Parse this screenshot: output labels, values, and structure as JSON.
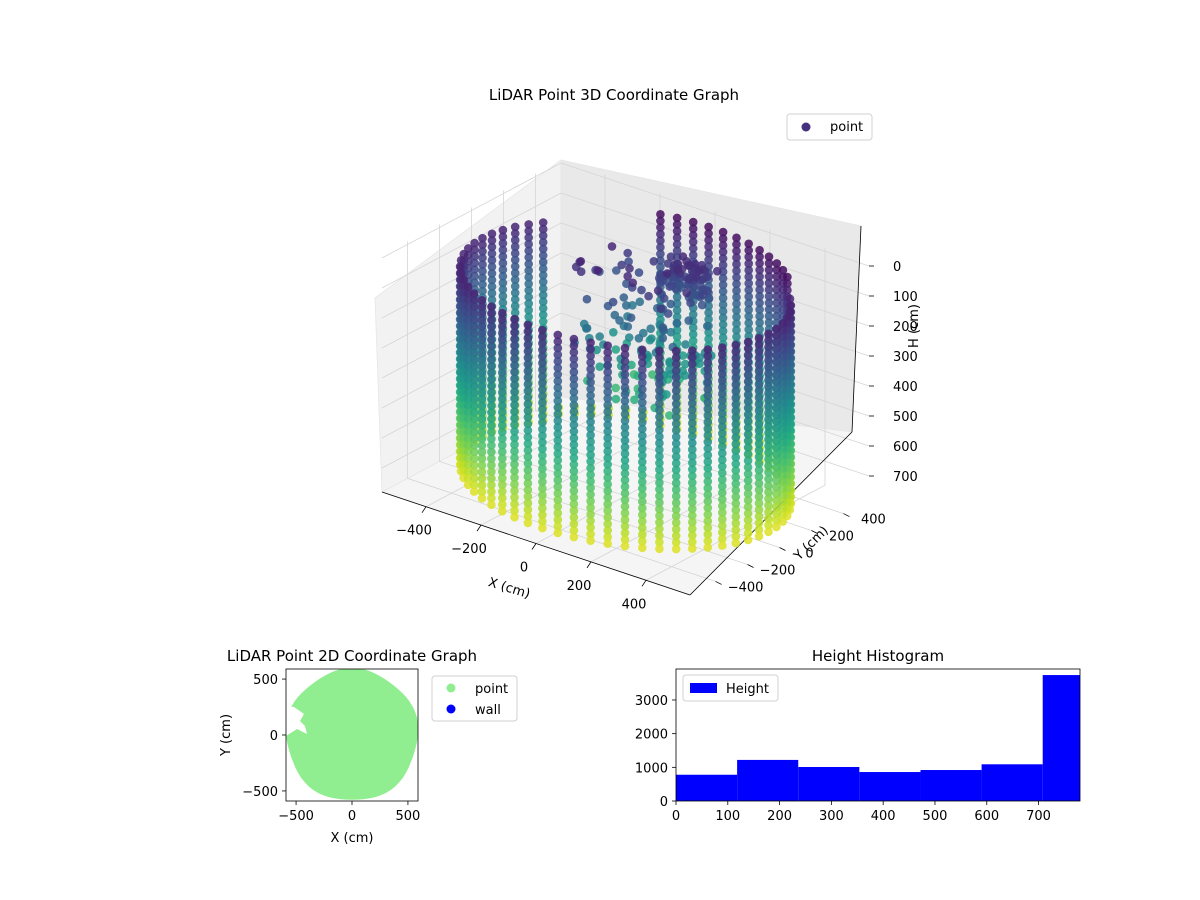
{
  "chart_data": [
    {
      "type": "scatter",
      "projection": "3d",
      "title": "LiDAR Point 3D Coordinate Graph",
      "xlabel": "X (cm)",
      "ylabel": "Y (cm)",
      "zlabel": "H (cm)",
      "xticks": [
        "−400",
        "−200",
        "0",
        "200",
        "400"
      ],
      "yticks": [
        "−400",
        "−200",
        "0",
        "200",
        "400"
      ],
      "zticks": [
        "0",
        "100",
        "200",
        "300",
        "400",
        "500",
        "600",
        "700"
      ],
      "xlim": [
        -560,
        560
      ],
      "ylim": [
        -560,
        560
      ],
      "zlim": [
        780,
        -10
      ],
      "z_inverted": true,
      "colormap": "viridis",
      "legend": {
        "placement": "top-right",
        "entries": [
          "point"
        ]
      },
      "legend_color": "#46317e",
      "grid": true,
      "shape": "cylindrical wall of points, radius about 560 cm, heights 0 to 780 cm, plus sparse interior points"
    },
    {
      "type": "scatter",
      "title": "LiDAR Point 2D Coordinate Graph",
      "xlabel": "X (cm)",
      "ylabel": "Y (cm)",
      "xticks": [
        "−500",
        "0",
        "500"
      ],
      "yticks": [
        "500",
        "0",
        "−500"
      ],
      "xlim": [
        -590,
        590
      ],
      "ylim": [
        -590,
        590
      ],
      "legend": {
        "placement": "right, outside",
        "entries": [
          "point",
          "wall"
        ]
      },
      "series": [
        {
          "name": "point",
          "color": "#90ee90",
          "shape": "filled disc, radius about 590 cm"
        },
        {
          "name": "wall",
          "color": "#0000ff"
        }
      ]
    },
    {
      "type": "bar",
      "subtype": "histogram",
      "title": "Height Histogram",
      "xticks": [
        "0",
        "100",
        "200",
        "300",
        "400",
        "500",
        "600",
        "700"
      ],
      "yticks": [
        "0",
        "1000",
        "2000",
        "3000"
      ],
      "xlim": [
        0,
        780
      ],
      "ylim": [
        0,
        3920
      ],
      "legend": {
        "placement": "top-left",
        "entries": [
          "Height"
        ]
      },
      "color": "#0000ff",
      "bins": [
        {
          "start": 0,
          "end": 118,
          "count": 780
        },
        {
          "start": 118,
          "end": 236,
          "count": 1220
        },
        {
          "start": 236,
          "end": 354,
          "count": 1010
        },
        {
          "start": 354,
          "end": 472,
          "count": 860
        },
        {
          "start": 472,
          "end": 590,
          "count": 920
        },
        {
          "start": 590,
          "end": 708,
          "count": 1090
        },
        {
          "start": 708,
          "end": 780,
          "count": 3740
        }
      ]
    }
  ]
}
